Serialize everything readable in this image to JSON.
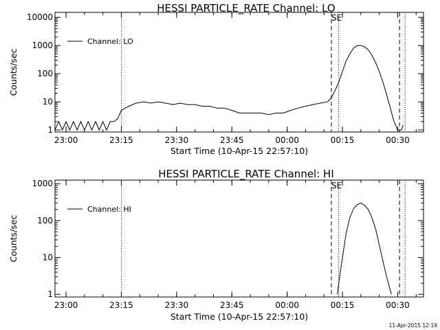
{
  "timestamp": "11-Apr-2015 12:19",
  "chart_data": [
    {
      "type": "line",
      "title": "HESSI PARTICLE_RATE Channel: LO",
      "xlabel": "Start Time (10-Apr-15 22:57:10)",
      "ylabel": "Counts/sec",
      "yscale": "log",
      "xlim": [
        "22:57",
        "00:37"
      ],
      "ylim": [
        0.85,
        15000
      ],
      "x_tick_labels": [
        "23:00",
        "23:15",
        "23:30",
        "23:45",
        "00:00",
        "00:15",
        "00:30"
      ],
      "y_tick_labels": [
        "1",
        "10",
        "100",
        "1000",
        "10000"
      ],
      "legend": {
        "position": "top-left",
        "label": "Channel: LO"
      },
      "event_marker": "SE",
      "dotted_lines": [
        "23:15",
        "00:14",
        "00:32"
      ],
      "dashed_lines": [
        "00:12",
        "00:30.5"
      ],
      "series": [
        {
          "name": "Channel: LO",
          "x": [
            "22:57",
            "22:58",
            "22:59",
            "23:00",
            "23:01",
            "23:02",
            "23:03",
            "23:04",
            "23:05",
            "23:06",
            "23:07",
            "23:08",
            "23:09",
            "23:10",
            "23:11",
            "23:12",
            "23:13",
            "23:14",
            "23:15",
            "23:17",
            "23:19",
            "23:21",
            "23:23",
            "23:25",
            "23:27",
            "23:29",
            "23:31",
            "23:33",
            "23:35",
            "23:37",
            "23:39",
            "23:41",
            "23:43",
            "23:45",
            "23:47",
            "23:49",
            "23:51",
            "23:53",
            "23:55",
            "23:57",
            "23:59",
            "00:01",
            "00:03",
            "00:05",
            "00:07",
            "00:09",
            "00:11",
            "00:12",
            "00:13",
            "00:14",
            "00:15",
            "00:16",
            "00:17",
            "00:18",
            "00:19",
            "00:20",
            "00:21",
            "00:22",
            "00:23",
            "00:24",
            "00:25",
            "00:26",
            "00:27",
            "00:28",
            "00:29",
            "00:30",
            "00:31",
            "00:31.5"
          ],
          "values": [
            1,
            2,
            1,
            2,
            1,
            2,
            1,
            2,
            1,
            2,
            1,
            2,
            1,
            2,
            1,
            2,
            2,
            2.5,
            5,
            7,
            9,
            10,
            9,
            10,
            9,
            8,
            9,
            8,
            8,
            7,
            7,
            6,
            6,
            5,
            4,
            4,
            4,
            4,
            3.5,
            4,
            4,
            5,
            6,
            7,
            8,
            9,
            10,
            14,
            25,
            50,
            120,
            280,
            500,
            800,
            1000,
            1000,
            900,
            700,
            450,
            250,
            120,
            50,
            18,
            6,
            2,
            1,
            1,
            1.5
          ]
        }
      ]
    },
    {
      "type": "line",
      "title": "HESSI PARTICLE_RATE Channel: HI",
      "xlabel": "Start Time (10-Apr-15 22:57:10)",
      "ylabel": "Counts/sec",
      "yscale": "log",
      "xlim": [
        "22:57",
        "00:37"
      ],
      "ylim": [
        0.85,
        1250
      ],
      "x_tick_labels": [
        "23:00",
        "23:15",
        "23:30",
        "23:45",
        "00:00",
        "00:15",
        "00:30"
      ],
      "y_tick_labels": [
        "1",
        "10",
        "100",
        "1000"
      ],
      "legend": {
        "position": "top-left",
        "label": "Channel: HI"
      },
      "event_marker": "SE",
      "dotted_lines": [
        "23:15",
        "00:14",
        "00:32"
      ],
      "dashed_lines": [
        "00:12",
        "00:30.5"
      ],
      "series": [
        {
          "name": "Channel: HI",
          "x": [
            "00:13.6",
            "00:14",
            "00:15",
            "00:16",
            "00:17",
            "00:18",
            "00:19",
            "00:20",
            "00:21",
            "00:22",
            "00:23",
            "00:24",
            "00:25",
            "00:26",
            "00:27",
            "00:28.3"
          ],
          "values": [
            1,
            2,
            10,
            45,
            120,
            210,
            270,
            300,
            260,
            200,
            120,
            60,
            22,
            8,
            3,
            1
          ]
        }
      ]
    }
  ]
}
